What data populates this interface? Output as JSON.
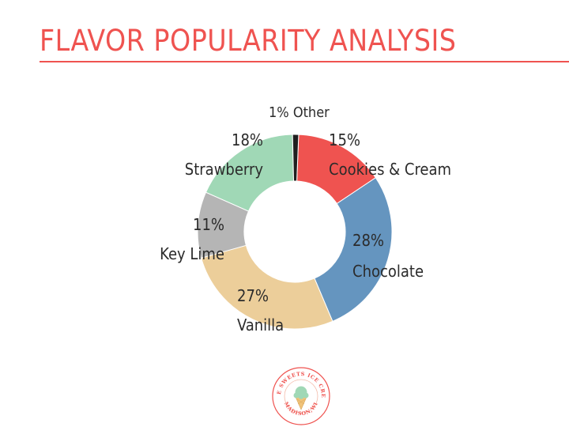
{
  "title": "FLAVOR POPULARITY ANALYSIS",
  "colors": {
    "accent": "#ef5350",
    "cookies_and_cream": "#ef5350",
    "chocolate": "#6595bf",
    "vanilla": "#ecce9a",
    "key_lime": "#b5b5b5",
    "strawberry": "#a0d8b6",
    "other": "#1f1f1f"
  },
  "chart_data": {
    "type": "pie",
    "donut": true,
    "title": "",
    "slices": [
      {
        "label": "Cookies & Cream",
        "value": 15,
        "display": "15%",
        "color": "#ef5350"
      },
      {
        "label": "Chocolate",
        "value": 28,
        "display": "28%",
        "color": "#6595bf"
      },
      {
        "label": "Vanilla",
        "value": 27,
        "display": "27%",
        "color": "#ecce9a"
      },
      {
        "label": "Key Lime",
        "value": 11,
        "display": "11%",
        "color": "#b5b5b5"
      },
      {
        "label": "Strawberry",
        "value": 18,
        "display": "18%",
        "color": "#a0d8b6"
      },
      {
        "label": "Other",
        "value": 1,
        "display": "1%",
        "color": "#1f1f1f"
      }
    ]
  },
  "logo": {
    "top_text": "BARE SWEETS ICE CREAM",
    "bottom_text": "MADISON,WI"
  }
}
